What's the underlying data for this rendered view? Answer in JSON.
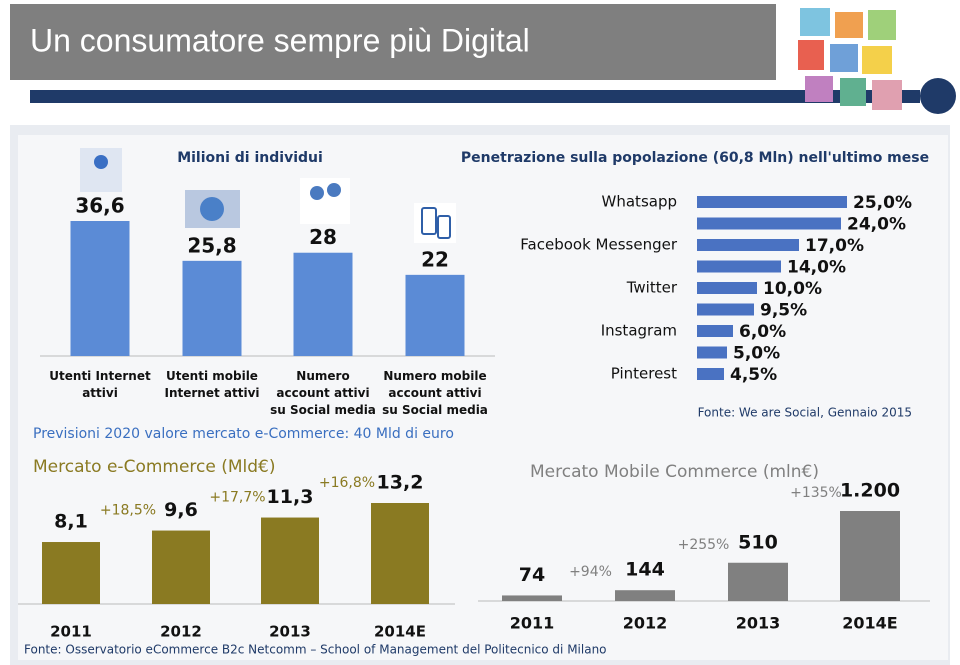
{
  "title": "Un consumatore sempre più Digital",
  "annotation": "Previsioni 2020 valore mercato e-Commerce: 40 Mld di euro",
  "footnote": "Fonte: Osservatorio eCommerce B2c Netcomm – School of Management del Politecnico di Milano",
  "chart_data": [
    {
      "type": "bar",
      "title": "Milioni di individui",
      "categories": [
        "Utenti Internet attivi",
        "Utenti mobile Internet attivi",
        "Numero account attivi su Social media",
        "Numero mobile account attivi su Social media"
      ],
      "values": [
        36.6,
        25.8,
        28,
        22
      ],
      "value_labels": [
        "36,6",
        "25,8",
        "28",
        "22"
      ],
      "color": "#5b8bd6"
    },
    {
      "type": "barh",
      "title": "Penetrazione sulla popolazione (60,8 Mln) nell'ultimo mese",
      "source": "Fonte: We are Social, Gennaio 2015",
      "categories": [
        "Whatsapp",
        null,
        "Facebook Messenger",
        null,
        "Twitter",
        null,
        "Instagram",
        null,
        "Pinterest"
      ],
      "values": [
        25,
        24,
        17,
        14,
        10,
        9.5,
        6,
        5,
        4.5
      ],
      "value_labels": [
        "25,0%",
        "24,0%",
        "17,0%",
        "14,0%",
        "10,0%",
        "9,5%",
        "6,0%",
        "5,0%",
        "4,5%"
      ],
      "color": "#4a72c2"
    },
    {
      "type": "bar",
      "title": "Mercato e-Commerce (Mld€)",
      "categories": [
        "2011",
        "2012",
        "2013",
        "2014E"
      ],
      "values": [
        8.1,
        9.6,
        11.3,
        13.2
      ],
      "value_labels": [
        "8,1",
        "9,6",
        "11,3",
        "13,2"
      ],
      "growth_labels": [
        "+18,5%",
        "+17,7%",
        "+16,8%"
      ],
      "color": "#8a7a22"
    },
    {
      "type": "bar",
      "title": "Mercato Mobile Commerce (mln€)",
      "categories": [
        "2011",
        "2012",
        "2013",
        "2014E"
      ],
      "values": [
        74,
        144,
        510,
        1200
      ],
      "value_labels": [
        "74",
        "144",
        "510",
        "1.200"
      ],
      "growth_labels": [
        "+94%",
        "+255%",
        "+135%"
      ],
      "color": "#808080"
    }
  ]
}
